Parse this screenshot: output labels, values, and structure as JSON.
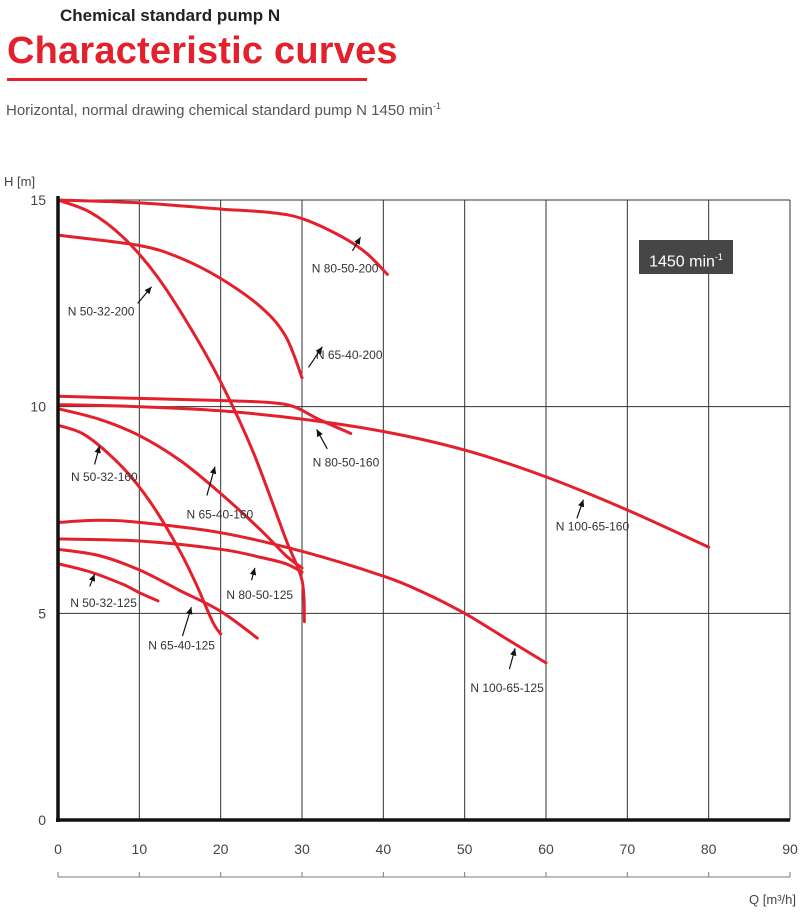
{
  "header": {
    "subtitle": "Chemical standard pump N",
    "title": "Characteristic curves",
    "caption_text": "Horizontal, normal drawing chemical standard pump N 1450 min",
    "caption_sup": "-1"
  },
  "badge": {
    "text": "1450 min",
    "sup": "-1"
  },
  "colors": {
    "curve": "#e3202c",
    "grid": "#333333",
    "axis": "#111111",
    "title": "#e3202c",
    "badge": "#464646"
  },
  "chart_data": {
    "type": "line",
    "xlabel": "Q [m³/h]",
    "ylabel": "H [m]",
    "xlim": [
      0,
      90
    ],
    "ylim": [
      0,
      15
    ],
    "xticks": [
      0,
      10,
      20,
      30,
      40,
      50,
      60,
      70,
      80,
      90
    ],
    "yticks": [
      0,
      5,
      10,
      15
    ],
    "grid": true,
    "series": [
      {
        "name": "N 80-50-200",
        "points": [
          [
            0,
            15.0
          ],
          [
            10,
            14.93
          ],
          [
            20,
            14.78
          ],
          [
            26,
            14.7
          ],
          [
            30,
            14.55
          ],
          [
            35,
            14.1
          ],
          [
            38,
            13.7
          ],
          [
            40.5,
            13.2
          ]
        ]
      },
      {
        "name": "N 65-40-200",
        "points": [
          [
            0,
            14.15
          ],
          [
            10,
            13.9
          ],
          [
            15,
            13.6
          ],
          [
            20,
            13.1
          ],
          [
            25,
            12.4
          ],
          [
            28,
            11.7
          ],
          [
            30,
            10.7
          ]
        ]
      },
      {
        "name": "N 50-32-200",
        "points": [
          [
            0,
            15.0
          ],
          [
            4,
            14.7
          ],
          [
            8,
            14.1
          ],
          [
            12,
            13.2
          ],
          [
            16,
            12.0
          ],
          [
            20,
            10.6
          ],
          [
            24,
            8.9
          ],
          [
            28,
            6.8
          ],
          [
            30,
            5.8
          ],
          [
            30.3,
            4.8
          ]
        ]
      },
      {
        "name": "N 80-50-160",
        "points": [
          [
            0,
            10.25
          ],
          [
            10,
            10.2
          ],
          [
            20,
            10.15
          ],
          [
            26,
            10.1
          ],
          [
            29,
            10.0
          ],
          [
            32,
            9.7
          ],
          [
            36,
            9.35
          ]
        ]
      },
      {
        "name": "N 100-65-160",
        "points": [
          [
            0,
            10.05
          ],
          [
            10,
            10.0
          ],
          [
            20,
            9.9
          ],
          [
            30,
            9.7
          ],
          [
            40,
            9.4
          ],
          [
            50,
            8.95
          ],
          [
            60,
            8.3
          ],
          [
            70,
            7.5
          ],
          [
            80,
            6.6
          ]
        ]
      },
      {
        "name": "N 65-40-160",
        "points": [
          [
            0,
            9.95
          ],
          [
            5,
            9.7
          ],
          [
            10,
            9.3
          ],
          [
            15,
            8.7
          ],
          [
            20,
            7.9
          ],
          [
            25,
            7.0
          ],
          [
            28,
            6.4
          ],
          [
            30,
            6.1
          ]
        ]
      },
      {
        "name": "N 50-32-160",
        "points": [
          [
            0,
            9.55
          ],
          [
            3,
            9.35
          ],
          [
            6,
            8.9
          ],
          [
            9,
            8.3
          ],
          [
            12,
            7.5
          ],
          [
            15,
            6.5
          ],
          [
            17,
            5.7
          ],
          [
            19,
            4.8
          ],
          [
            20,
            4.5
          ]
        ]
      },
      {
        "name": "N 100-65-125",
        "points": [
          [
            0,
            7.2
          ],
          [
            5,
            7.25
          ],
          [
            10,
            7.2
          ],
          [
            20,
            6.95
          ],
          [
            30,
            6.5
          ],
          [
            40,
            5.9
          ],
          [
            45,
            5.5
          ],
          [
            50,
            5.0
          ],
          [
            55,
            4.4
          ],
          [
            60,
            3.8
          ]
        ]
      },
      {
        "name": "N 80-50-125",
        "points": [
          [
            0,
            6.8
          ],
          [
            10,
            6.75
          ],
          [
            20,
            6.55
          ],
          [
            25,
            6.35
          ],
          [
            28,
            6.2
          ],
          [
            30,
            6.0
          ]
        ]
      },
      {
        "name": "N 65-40-125",
        "points": [
          [
            0,
            6.55
          ],
          [
            5,
            6.4
          ],
          [
            10,
            6.05
          ],
          [
            15,
            5.55
          ],
          [
            20,
            5.05
          ],
          [
            24.5,
            4.4
          ]
        ]
      },
      {
        "name": "N 50-32-125",
        "points": [
          [
            0,
            6.2
          ],
          [
            4,
            6.0
          ],
          [
            8,
            5.7
          ],
          [
            10,
            5.5
          ],
          [
            12.3,
            5.3
          ]
        ]
      }
    ]
  }
}
